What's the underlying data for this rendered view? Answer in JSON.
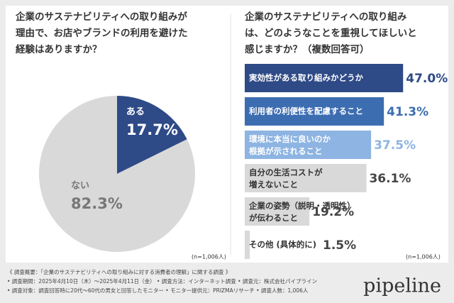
{
  "chart_data": [
    {
      "type": "pie",
      "title": "企業のサステナビリティへの取り組みが\n理由で、お店やブランドの利用を避けた\n経験はありますか？",
      "categories": [
        "ある",
        "ない"
      ],
      "values": [
        17.7,
        82.3
      ],
      "value_labels": [
        "17.7%",
        "82.3%"
      ],
      "colors": [
        "#2e4a87",
        "#d9d9d9"
      ],
      "note": "(n=1,006人)"
    },
    {
      "type": "hbar",
      "title": "企業のサステナビリティへの取り組み\nは、どのようなことを重視してほしいと\n感じますか？（複数回答可）",
      "categories": [
        "実効性がある取り組みかどうか",
        "利用者の利便性を配慮すること",
        "環境に本当に良いのか\n根拠が示されること",
        "自分の生活コストが\n増えないこと",
        "企業の姿勢（説明・透明性）\nが伝わること",
        "その他 (具体的に)"
      ],
      "values": [
        47.0,
        41.3,
        37.5,
        36.1,
        19.2,
        1.5
      ],
      "value_labels": [
        "47.0%",
        "41.3%",
        "37.5%",
        "36.1%",
        "19.2%",
        "1.5%"
      ],
      "colors": [
        "#2e4a87",
        "#3d6db1",
        "#8db4e2",
        "#d9d9d9",
        "#d9d9d9",
        "#d9d9d9"
      ],
      "label_colors": [
        "#2e4a87",
        "#3d6db1",
        "#8db4e2",
        "#444444",
        "#444444",
        "#444444"
      ],
      "note": "(n=1,006人)"
    }
  ],
  "footer": {
    "lines": [
      "《 調査概要：「企業のサステナビリティへの取り組みに対する消費者の理解」に関する調査 》",
      "• 調査期間：2025年4月10日（木）〜2025年4月11日（金） • 調査方法：インターネット調査 • 調査元：株式会社パイプライン",
      "• 調査対象：調査回答時に20代〜60代の男女と回答したモニター • モニター提供元：PRIZMAリサーチ • 調査人数：1,006人"
    ],
    "logo": "pipeline"
  }
}
